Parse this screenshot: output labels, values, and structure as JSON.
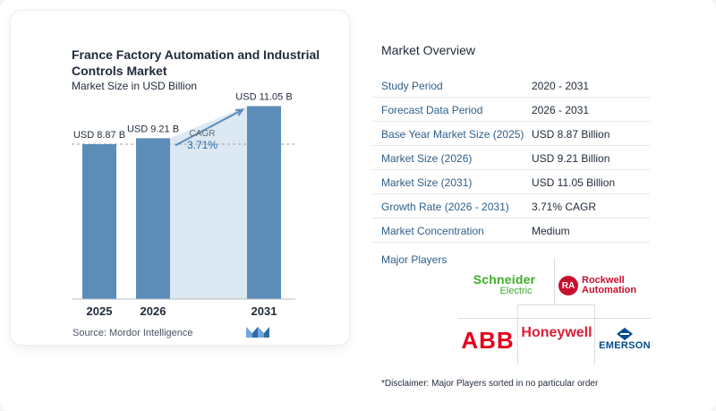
{
  "chart_data": {
    "type": "bar",
    "title": "France Factory Automation and Industrial Controls Market",
    "subtitle": "Market Size in USD Billion",
    "categories": [
      "2025",
      "2026",
      "2031"
    ],
    "values": [
      8.87,
      9.21,
      11.05
    ],
    "value_labels": [
      "USD 8.87 B",
      "USD 9.21 B",
      "USD 11.05 B"
    ],
    "cagr_label": "CAGR",
    "cagr_value": "3.71%",
    "ylim": [
      0,
      12
    ],
    "colors": {
      "bar": "#5b8db8",
      "bar_light": "#dce8f2",
      "arrow": "#5b8db8"
    },
    "source": "Source:  Mordor Intelligence"
  },
  "overview": {
    "title": "Market Overview",
    "rows": [
      {
        "key": "Study Period",
        "value": "2020 - 2031"
      },
      {
        "key": "Forecast Data Period",
        "value": "2026 - 2031"
      },
      {
        "key": "Base Year Market Size (2025)",
        "value": "USD 8.87 Billion"
      },
      {
        "key": "Market Size (2026)",
        "value": "USD 9.21 Billion"
      },
      {
        "key": "Market Size (2031)",
        "value": "USD 11.05 Billion"
      },
      {
        "key": "Growth Rate (2026 - 2031)",
        "value": "3.71% CAGR"
      },
      {
        "key": "Market Concentration",
        "value": "Medium"
      }
    ]
  },
  "players": {
    "title": "Major Players",
    "logos": [
      {
        "name": "Schneider",
        "sub": "Electric",
        "color": "#3dae2b"
      },
      {
        "name": "Rockwell",
        "sub": "Automation",
        "color": "#c8102e"
      },
      {
        "name": "ABB",
        "color": "#e2001a"
      },
      {
        "name": "Honeywell",
        "color": "#dc1e35"
      },
      {
        "name": "EMERSON",
        "color": "#004b8d"
      }
    ],
    "rockwell_badge": "RA",
    "disclaimer": "*Disclaimer: Major Players sorted in no particular order"
  }
}
